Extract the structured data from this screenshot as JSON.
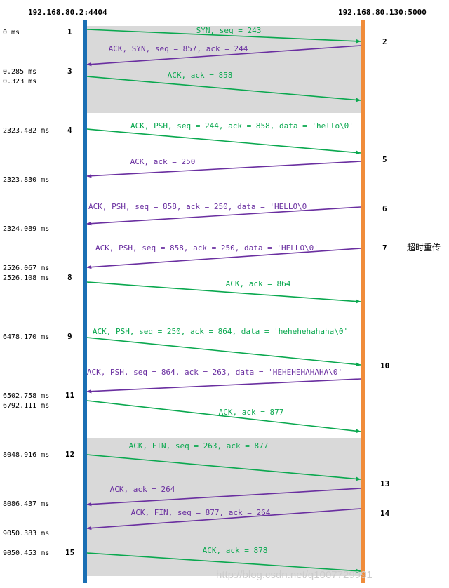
{
  "hosts": {
    "client": "192.168.80.2:4404",
    "server": "192.168.80.130:5000"
  },
  "colors": {
    "client_line": "#1a6fb4",
    "server_line": "#f08c3a",
    "to_server": "#0aa84f",
    "to_client": "#6a2fa0",
    "phase_shade": "#d9d9d9"
  },
  "messages": [
    {
      "label": "SYN, seq = 243",
      "dir": "to_server",
      "num": "1",
      "time": "0 ms"
    },
    {
      "label": "ACK, SYN, seq = 857, ack = 244",
      "dir": "to_client",
      "num": "2",
      "time": "0.285 ms"
    },
    {
      "label": "ACK, ack = 858",
      "dir": "to_server",
      "num": "3",
      "time": "0.323 ms"
    },
    {
      "label": "ACK, PSH, seq = 244, ack = 858, data = 'hello\\0'",
      "dir": "to_server",
      "num": "4",
      "time": "2323.482 ms"
    },
    {
      "label": "ACK, ack = 250",
      "dir": "to_client",
      "num": "5",
      "time": "2323.830 ms"
    },
    {
      "label": "ACK, PSH, seq = 858, ack = 250, data = 'HELLO\\0'",
      "dir": "to_client",
      "num": "6",
      "time": "2324.089 ms"
    },
    {
      "label": "ACK, PSH, seq = 858, ack = 250, data = 'HELLO\\0'",
      "dir": "to_client",
      "num": "7",
      "time": "2526.067 ms",
      "note": "超时重传"
    },
    {
      "label": "ACK, ack = 864",
      "dir": "to_server",
      "num": "8",
      "time": "2526.108 ms"
    },
    {
      "label": "ACK, PSH, seq = 250, ack = 864, data = 'hehehehahaha\\0'",
      "dir": "to_server",
      "num": "9",
      "time": "6478.170 ms"
    },
    {
      "label": "ACK, PSH, seq = 864, ack = 263, data = 'HEHEHEHAHAHA\\0'",
      "dir": "to_client",
      "num": "10",
      "time": "6502.758 ms"
    },
    {
      "label": "ACK, ack = 877",
      "dir": "to_server",
      "num": "11",
      "time": "6792.111 ms"
    },
    {
      "label": "ACK, FIN, seq = 263, ack = 877",
      "dir": "to_server",
      "num": "12",
      "time": "8048.916 ms"
    },
    {
      "label": "ACK, ack = 264",
      "dir": "to_client",
      "num": "13",
      "time": "8086.437 ms"
    },
    {
      "label": "ACK, FIN, seq = 877, ack = 264",
      "dir": "to_client",
      "num": "14",
      "time": "9050.383 ms"
    },
    {
      "label": "ACK, ack = 878",
      "dir": "to_server",
      "num": "15",
      "time": "9050.453 ms"
    }
  ],
  "watermark": "http://blog.csdn.net/q1007729991"
}
